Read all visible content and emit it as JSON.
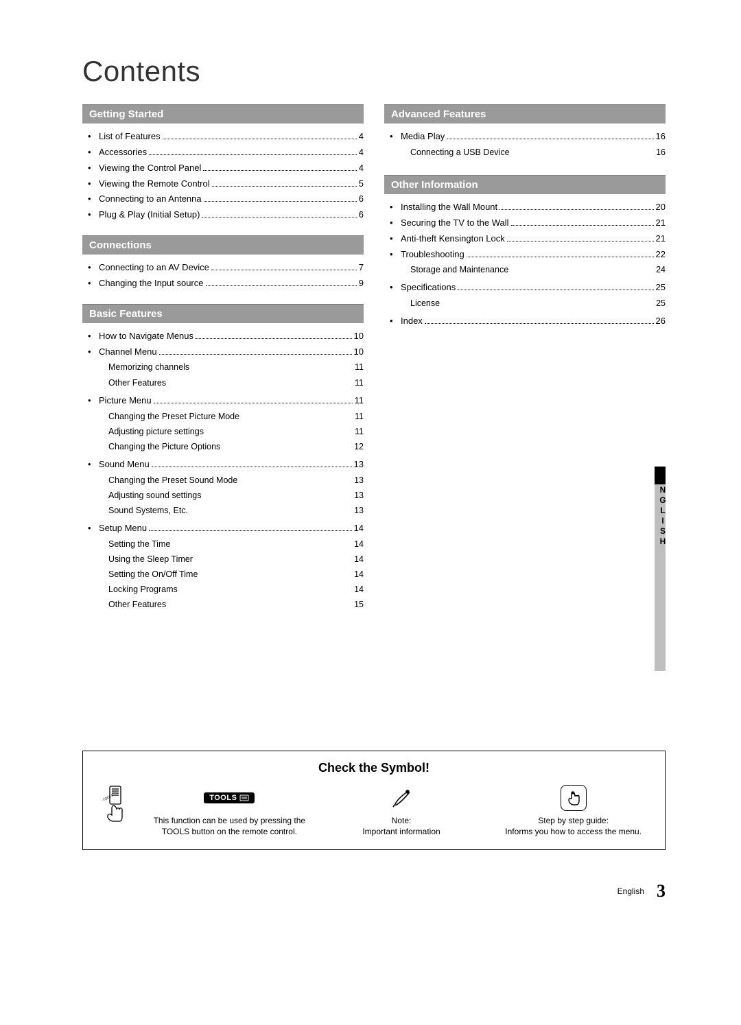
{
  "title": "Contents",
  "leftSections": [
    {
      "header": "Getting Started",
      "items": [
        {
          "label": "List of Features",
          "page": "4",
          "dots": true
        },
        {
          "label": "Accessories",
          "page": "4",
          "dots": true
        },
        {
          "label": "Viewing the Control Panel",
          "page": "4",
          "dots": true
        },
        {
          "label": "Viewing the Remote Control",
          "page": "5",
          "dots": true
        },
        {
          "label": "Connecting to an Antenna",
          "page": "6",
          "dots": true
        },
        {
          "label": "Plug & Play (Initial Setup)",
          "page": "6",
          "dots": true
        }
      ]
    },
    {
      "header": "Connections",
      "items": [
        {
          "label": "Connecting to an AV Device",
          "page": "7",
          "dots": true
        },
        {
          "label": "Changing the Input source",
          "page": "9",
          "dots": true
        }
      ]
    },
    {
      "header": "Basic Features",
      "items": [
        {
          "label": "How to Navigate Menus",
          "page": "10",
          "dots": true
        },
        {
          "label": "Channel Menu",
          "page": "10",
          "dots": true,
          "sub": [
            {
              "label": "Memorizing channels",
              "page": "11"
            },
            {
              "label": "Other Features",
              "page": "11"
            }
          ]
        },
        {
          "label": "Picture Menu",
          "page": "11",
          "dots": true,
          "sub": [
            {
              "label": "Changing the Preset Picture Mode",
              "page": "11"
            },
            {
              "label": "Adjusting picture settings",
              "page": "11"
            },
            {
              "label": "Changing the Picture Options",
              "page": "12"
            }
          ]
        },
        {
          "label": "Sound Menu",
          "page": "13",
          "dots": true,
          "sub": [
            {
              "label": "Changing the Preset Sound Mode",
              "page": "13"
            },
            {
              "label": "Adjusting sound settings",
              "page": "13"
            },
            {
              "label": "Sound Systems, Etc.",
              "page": "13"
            }
          ]
        },
        {
          "label": "Setup Menu",
          "page": "14",
          "dots": true,
          "sub": [
            {
              "label": "Setting the Time",
              "page": "14"
            },
            {
              "label": "Using the Sleep Timer",
              "page": "14"
            },
            {
              "label": "Setting the On/Off Time",
              "page": "14"
            },
            {
              "label": "Locking Programs",
              "page": "14"
            },
            {
              "label": "Other Features",
              "page": "15"
            }
          ]
        }
      ]
    }
  ],
  "rightSections": [
    {
      "header": "Advanced Features",
      "items": [
        {
          "label": "Media Play",
          "page": "16",
          "dots": true,
          "sub": [
            {
              "label": "Connecting a USB Device",
              "page": "16"
            }
          ]
        }
      ]
    },
    {
      "header": "Other Information",
      "items": [
        {
          "label": "Installing the Wall Mount",
          "page": "20",
          "dots": true
        },
        {
          "label": "Securing the TV to the Wall",
          "page": "21",
          "dots": true
        },
        {
          "label": "Anti-theft Kensington Lock",
          "page": "21",
          "dots": true
        },
        {
          "label": "Troubleshooting",
          "page": "22",
          "dots": true,
          "sub": [
            {
              "label": "Storage and Maintenance",
              "page": "24"
            }
          ]
        },
        {
          "label": "Specifications",
          "page": "25",
          "dots": true,
          "sub": [
            {
              "label": "License",
              "page": "25"
            }
          ]
        },
        {
          "label": "Index",
          "page": "26",
          "dots": true
        }
      ]
    }
  ],
  "langTab": "ENGLISH",
  "symbolBox": {
    "title": "Check the Symbol!",
    "tools": {
      "pill": "TOOLS",
      "text": "This function can be used by pressing the TOOLS button on the remote control."
    },
    "note": {
      "line1": "Note:",
      "line2": "Important information"
    },
    "step": {
      "line1": "Step by step guide:",
      "line2": "Informs you how to access the menu."
    }
  },
  "footer": {
    "lang": "English",
    "page": "3"
  }
}
